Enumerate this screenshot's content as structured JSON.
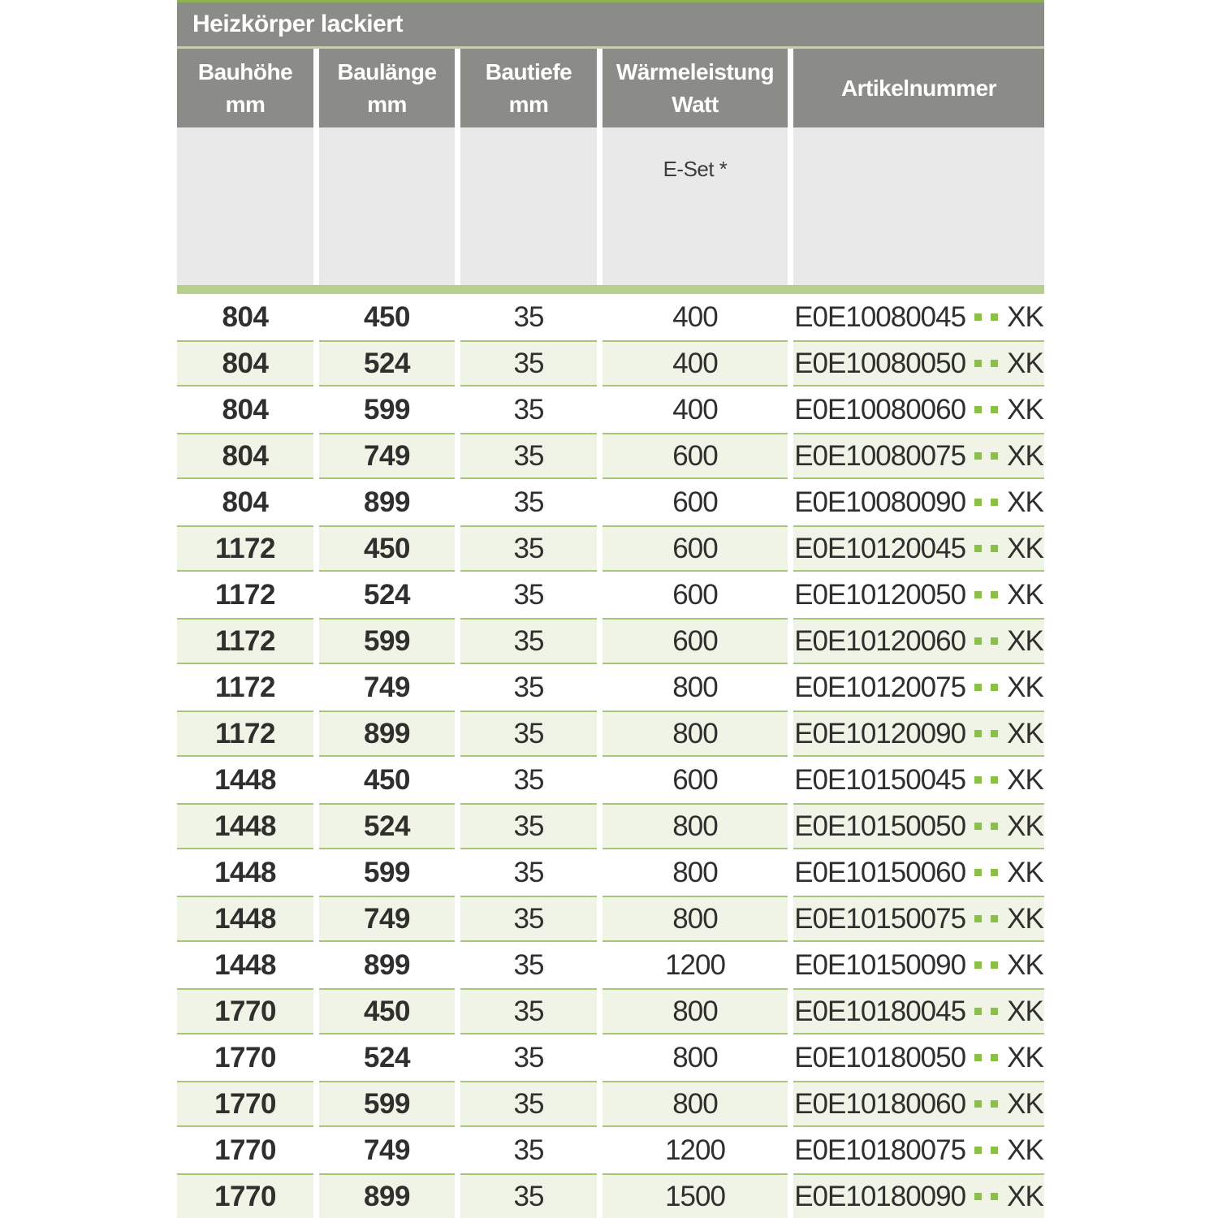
{
  "table": {
    "title": "Heizkörper lackiert",
    "columns": [
      {
        "line1": "Bauhöhe",
        "line2": "mm"
      },
      {
        "line1": "Baulänge",
        "line2": "mm"
      },
      {
        "line1": "Bautiefe",
        "line2": "mm"
      },
      {
        "line1": "Wärmeleistung",
        "line2": "Watt"
      },
      {
        "line1": "Artikelnummer",
        "line2": ""
      }
    ],
    "eset_label": "E-Set *",
    "artikel_dot_count": 2,
    "rows": [
      {
        "bauhoehe": "804",
        "baulaenge": "450",
        "bautiefe": "35",
        "watt": "400",
        "artikel": "E0E10080045",
        "suffix": "XK"
      },
      {
        "bauhoehe": "804",
        "baulaenge": "524",
        "bautiefe": "35",
        "watt": "400",
        "artikel": "E0E10080050",
        "suffix": "XK"
      },
      {
        "bauhoehe": "804",
        "baulaenge": "599",
        "bautiefe": "35",
        "watt": "400",
        "artikel": "E0E10080060",
        "suffix": "XK"
      },
      {
        "bauhoehe": "804",
        "baulaenge": "749",
        "bautiefe": "35",
        "watt": "600",
        "artikel": "E0E10080075",
        "suffix": "XK"
      },
      {
        "bauhoehe": "804",
        "baulaenge": "899",
        "bautiefe": "35",
        "watt": "600",
        "artikel": "E0E10080090",
        "suffix": "XK"
      },
      {
        "bauhoehe": "1172",
        "baulaenge": "450",
        "bautiefe": "35",
        "watt": "600",
        "artikel": "E0E10120045",
        "suffix": "XK"
      },
      {
        "bauhoehe": "1172",
        "baulaenge": "524",
        "bautiefe": "35",
        "watt": "600",
        "artikel": "E0E10120050",
        "suffix": "XK"
      },
      {
        "bauhoehe": "1172",
        "baulaenge": "599",
        "bautiefe": "35",
        "watt": "600",
        "artikel": "E0E10120060",
        "suffix": "XK"
      },
      {
        "bauhoehe": "1172",
        "baulaenge": "749",
        "bautiefe": "35",
        "watt": "800",
        "artikel": "E0E10120075",
        "suffix": "XK"
      },
      {
        "bauhoehe": "1172",
        "baulaenge": "899",
        "bautiefe": "35",
        "watt": "800",
        "artikel": "E0E10120090",
        "suffix": "XK"
      },
      {
        "bauhoehe": "1448",
        "baulaenge": "450",
        "bautiefe": "35",
        "watt": "600",
        "artikel": "E0E10150045",
        "suffix": "XK"
      },
      {
        "bauhoehe": "1448",
        "baulaenge": "524",
        "bautiefe": "35",
        "watt": "800",
        "artikel": "E0E10150050",
        "suffix": "XK"
      },
      {
        "bauhoehe": "1448",
        "baulaenge": "599",
        "bautiefe": "35",
        "watt": "800",
        "artikel": "E0E10150060",
        "suffix": "XK"
      },
      {
        "bauhoehe": "1448",
        "baulaenge": "749",
        "bautiefe": "35",
        "watt": "800",
        "artikel": "E0E10150075",
        "suffix": "XK"
      },
      {
        "bauhoehe": "1448",
        "baulaenge": "899",
        "bautiefe": "35",
        "watt": "1200",
        "artikel": "E0E10150090",
        "suffix": "XK"
      },
      {
        "bauhoehe": "1770",
        "baulaenge": "450",
        "bautiefe": "35",
        "watt": "800",
        "artikel": "E0E10180045",
        "suffix": "XK"
      },
      {
        "bauhoehe": "1770",
        "baulaenge": "524",
        "bautiefe": "35",
        "watt": "800",
        "artikel": "E0E10180050",
        "suffix": "XK"
      },
      {
        "bauhoehe": "1770",
        "baulaenge": "599",
        "bautiefe": "35",
        "watt": "800",
        "artikel": "E0E10180060",
        "suffix": "XK"
      },
      {
        "bauhoehe": "1770",
        "baulaenge": "749",
        "bautiefe": "35",
        "watt": "1200",
        "artikel": "E0E10180075",
        "suffix": "XK"
      },
      {
        "bauhoehe": "1770",
        "baulaenge": "899",
        "bautiefe": "35",
        "watt": "1500",
        "artikel": "E0E10180090",
        "suffix": "XK"
      }
    ]
  },
  "colors": {
    "gray": "#8b8c88",
    "lightgray": "#e9e9e9",
    "green-strong": "#8eb152",
    "green-pale": "#c2d49c",
    "green-bar": "#b5cf8c",
    "row-tint": "#f0f4e7",
    "row-border": "#a7c677",
    "dot-green": "#8cbe4c",
    "ink": "#2f2f2d"
  }
}
